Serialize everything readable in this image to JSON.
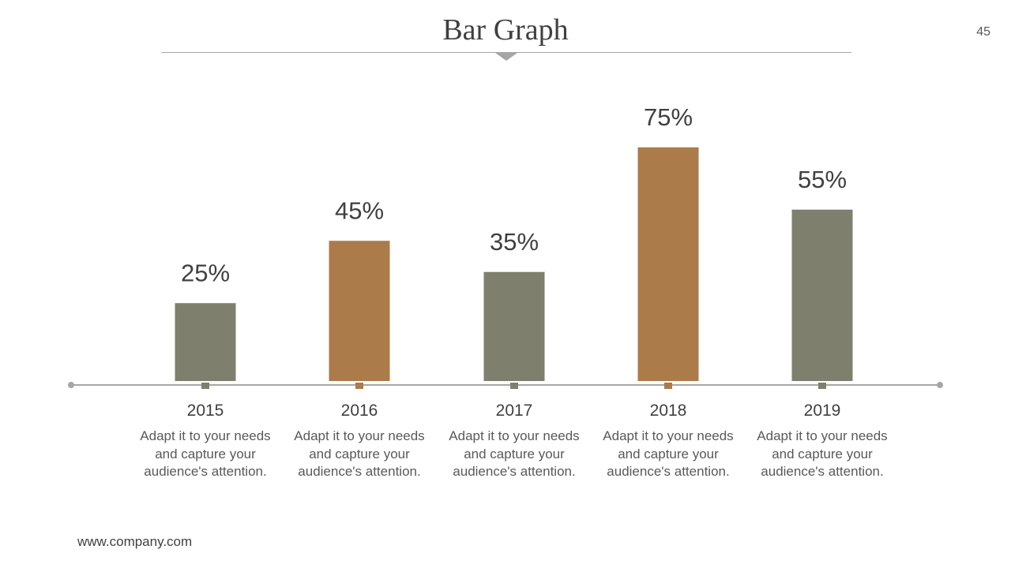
{
  "slide": {
    "title": "Bar Graph",
    "page_number": "45",
    "footer": "www.company.com"
  },
  "colors": {
    "gray": "#7f7f6e",
    "brown": "#ab7b4a",
    "axis": "#a6a6a6",
    "text": "#404040"
  },
  "chart_data": {
    "type": "bar",
    "title": "Bar Graph",
    "categories": [
      "2015",
      "2016",
      "2017",
      "2018",
      "2019"
    ],
    "values": [
      25,
      45,
      35,
      75,
      55
    ],
    "value_labels": [
      "25%",
      "45%",
      "35%",
      "75%",
      "55%"
    ],
    "captions": [
      "Adapt it to your needs and capture your audience's attention.",
      "Adapt it to your needs and capture your audience's attention.",
      "Adapt it to your needs and capture your audience's attention.",
      "Adapt it to your needs and capture your audience's attention.",
      "Adapt it to your needs and capture your audience's attention."
    ],
    "bar_colors": [
      "#7f7f6e",
      "#ab7b4a",
      "#7f7f6e",
      "#ab7b4a",
      "#7f7f6e"
    ],
    "xlabel": "",
    "ylabel": "",
    "ylim": [
      0,
      100
    ],
    "grid": false,
    "legend": "none"
  }
}
